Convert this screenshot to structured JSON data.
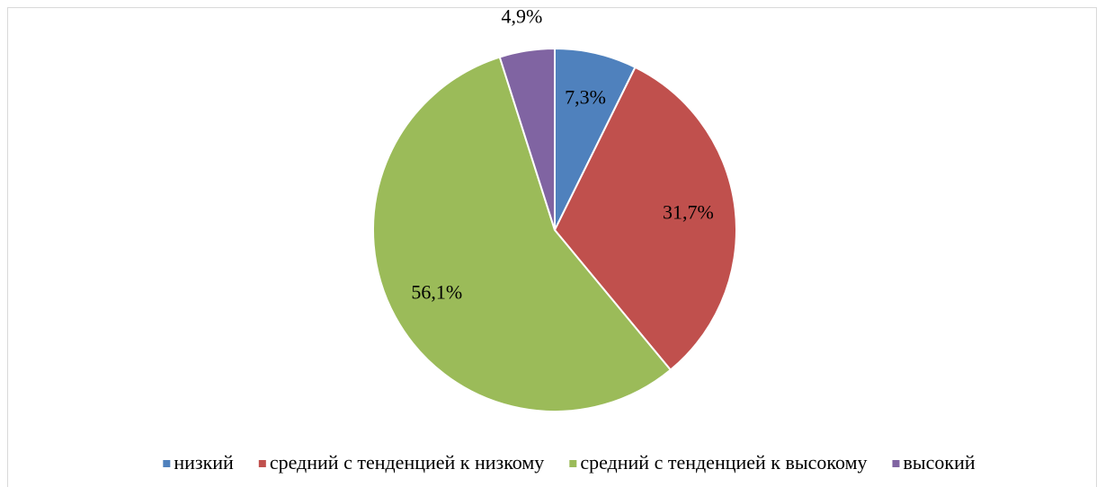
{
  "chart_data": {
    "type": "pie",
    "categories": [
      "низкий",
      "средний с тенденцией к низкому",
      "средний с тенденцией к высокому",
      "высокий"
    ],
    "values": [
      7.3,
      31.7,
      56.1,
      4.9
    ],
    "value_labels": [
      "7,3%",
      "31,7%",
      "56,1%",
      "4,9%"
    ],
    "colors": [
      "#4f81bd",
      "#c0504d",
      "#9bbb59",
      "#8064a2"
    ],
    "legend": "bottom"
  }
}
